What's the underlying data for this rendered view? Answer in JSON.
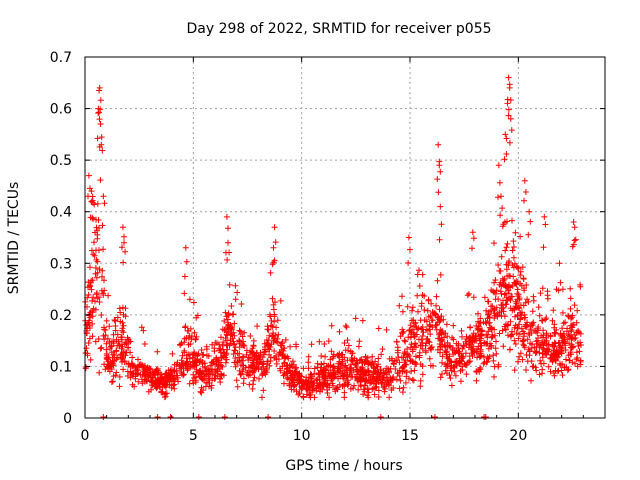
{
  "chart_data": {
    "type": "scatter",
    "title": "Day 298 of 2022, SRMTID for receiver p055",
    "xlabel": "GPS time / hours",
    "ylabel": "SRMTID / TECUs",
    "xlim": [
      0,
      24
    ],
    "ylim": [
      0,
      0.7
    ],
    "x_ticks": [
      "0",
      "5",
      "10",
      "15",
      "20"
    ],
    "y_ticks": [
      "0",
      "0.1",
      "0.2",
      "0.3",
      "0.4",
      "0.5",
      "0.6",
      "0.7"
    ],
    "grid": true,
    "marker": "plus",
    "color": "#ff0000",
    "envelope": [
      [
        0.0,
        0.2,
        0.11
      ],
      [
        0.3,
        0.35,
        0.14
      ],
      [
        0.6,
        0.5,
        0.12
      ],
      [
        0.9,
        0.22,
        0.09
      ],
      [
        1.2,
        0.12,
        0.08
      ],
      [
        1.5,
        0.22,
        0.09
      ],
      [
        1.8,
        0.18,
        0.09
      ],
      [
        2.2,
        0.11,
        0.08
      ],
      [
        2.6,
        0.1,
        0.08
      ],
      [
        3.0,
        0.09,
        0.07
      ],
      [
        3.4,
        0.08,
        0.06
      ],
      [
        3.8,
        0.08,
        0.06
      ],
      [
        4.2,
        0.1,
        0.07
      ],
      [
        4.6,
        0.17,
        0.09
      ],
      [
        5.0,
        0.15,
        0.08
      ],
      [
        5.4,
        0.12,
        0.07
      ],
      [
        5.8,
        0.11,
        0.07
      ],
      [
        6.2,
        0.14,
        0.08
      ],
      [
        6.6,
        0.22,
        0.12
      ],
      [
        7.0,
        0.17,
        0.09
      ],
      [
        7.4,
        0.15,
        0.08
      ],
      [
        7.8,
        0.13,
        0.07
      ],
      [
        8.2,
        0.12,
        0.07
      ],
      [
        8.6,
        0.21,
        0.12
      ],
      [
        9.0,
        0.16,
        0.1
      ],
      [
        9.4,
        0.11,
        0.07
      ],
      [
        9.8,
        0.09,
        0.06
      ],
      [
        10.2,
        0.07,
        0.05
      ],
      [
        10.6,
        0.08,
        0.05
      ],
      [
        11.0,
        0.1,
        0.06
      ],
      [
        11.4,
        0.11,
        0.06
      ],
      [
        11.8,
        0.12,
        0.06
      ],
      [
        12.2,
        0.12,
        0.06
      ],
      [
        12.6,
        0.12,
        0.06
      ],
      [
        13.0,
        0.12,
        0.06
      ],
      [
        13.4,
        0.11,
        0.06
      ],
      [
        13.8,
        0.09,
        0.05
      ],
      [
        14.2,
        0.11,
        0.06
      ],
      [
        14.6,
        0.16,
        0.07
      ],
      [
        15.0,
        0.2,
        0.08
      ],
      [
        15.4,
        0.23,
        0.09
      ],
      [
        15.8,
        0.21,
        0.09
      ],
      [
        16.2,
        0.24,
        0.14
      ],
      [
        16.6,
        0.17,
        0.09
      ],
      [
        17.0,
        0.14,
        0.08
      ],
      [
        17.4,
        0.15,
        0.09
      ],
      [
        17.8,
        0.19,
        0.11
      ],
      [
        18.2,
        0.18,
        0.1
      ],
      [
        18.6,
        0.22,
        0.1
      ],
      [
        19.0,
        0.28,
        0.12
      ],
      [
        19.4,
        0.33,
        0.16
      ],
      [
        19.8,
        0.3,
        0.14
      ],
      [
        20.2,
        0.27,
        0.12
      ],
      [
        20.6,
        0.22,
        0.1
      ],
      [
        21.0,
        0.19,
        0.1
      ],
      [
        21.4,
        0.17,
        0.09
      ],
      [
        21.8,
        0.17,
        0.09
      ],
      [
        22.2,
        0.19,
        0.1
      ],
      [
        22.6,
        0.22,
        0.1
      ],
      [
        22.9,
        0.2,
        0.09
      ]
    ],
    "spikes": [
      [
        0.65,
        0.635
      ],
      [
        0.68,
        0.64
      ],
      [
        0.72,
        0.57
      ],
      [
        0.62,
        0.6
      ],
      [
        0.75,
        0.53
      ],
      [
        0.18,
        0.47
      ],
      [
        0.3,
        0.44
      ],
      [
        0.85,
        0.43
      ],
      [
        6.55,
        0.39
      ],
      [
        6.6,
        0.34
      ],
      [
        8.75,
        0.37
      ],
      [
        8.7,
        0.33
      ],
      [
        16.3,
        0.53
      ],
      [
        16.35,
        0.49
      ],
      [
        16.4,
        0.41
      ],
      [
        19.55,
        0.66
      ],
      [
        19.6,
        0.64
      ],
      [
        19.5,
        0.61
      ],
      [
        19.65,
        0.58
      ],
      [
        19.4,
        0.55
      ],
      [
        19.1,
        0.49
      ],
      [
        19.2,
        0.43
      ],
      [
        20.3,
        0.46
      ],
      [
        20.5,
        0.4
      ],
      [
        21.2,
        0.39
      ],
      [
        22.55,
        0.38
      ],
      [
        22.6,
        0.37
      ],
      [
        1.75,
        0.37
      ],
      [
        1.8,
        0.34
      ],
      [
        17.9,
        0.36
      ],
      [
        4.65,
        0.33
      ],
      [
        21.9,
        0.3
      ],
      [
        14.95,
        0.35
      ]
    ],
    "baseline_points": [
      0.85,
      3.35,
      3.95,
      5.25,
      6.45,
      8.45,
      13.65,
      16.15,
      18.42,
      18.5
    ]
  }
}
